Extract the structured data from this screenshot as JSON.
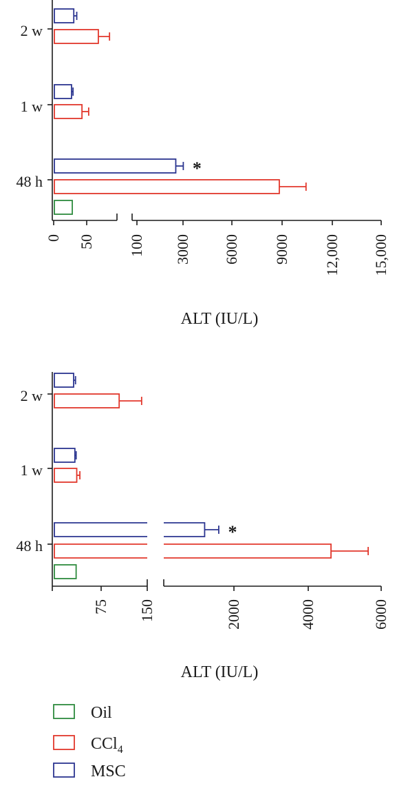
{
  "chart_data": [
    {
      "type": "bar",
      "orientation": "horizontal",
      "categories": [
        "2 w",
        "1 w",
        "48 h"
      ],
      "xlabel": "ALT (IU/L)",
      "axis_break": {
        "segments": [
          [
            0,
            85
          ],
          [
            85,
            15000
          ]
        ]
      },
      "ticks_segment1": [
        "0",
        "50"
      ],
      "ticks_segment2": [
        "100",
        "3000",
        "6000",
        "9000",
        "12,000",
        "15,000"
      ],
      "tick_values_segment2": [
        100,
        3000,
        6000,
        9000,
        12000,
        15000
      ],
      "series": [
        {
          "name": "Oil",
          "values": [
            null,
            null,
            25
          ],
          "errors": [
            null,
            null,
            0
          ]
        },
        {
          "name": "CCl4",
          "values": [
            60,
            38,
            8900
          ],
          "errors": [
            15,
            9,
            1600
          ]
        },
        {
          "name": "MSC",
          "values": [
            27,
            24,
            2700
          ],
          "errors": [
            4,
            2,
            450
          ]
        }
      ],
      "annotations": [
        {
          "category": "48 h",
          "series": "MSC",
          "text": "*"
        }
      ]
    },
    {
      "type": "bar",
      "orientation": "horizontal",
      "categories": [
        "2 w",
        "1 w",
        "48 h"
      ],
      "xlabel": "ALT (IU/L)",
      "axis_break": {
        "segments": [
          [
            0,
            150
          ],
          [
            150,
            6000
          ]
        ]
      },
      "ticks_segment1": [
        "75",
        "150"
      ],
      "tick_values_segment1": [
        75,
        150
      ],
      "ticks_segment2": [
        "2000",
        "4000",
        "6000"
      ],
      "tick_values_segment2": [
        2000,
        4000,
        6000
      ],
      "series": [
        {
          "name": "Oil",
          "values": [
            null,
            null,
            36
          ],
          "errors": [
            null,
            null,
            0
          ]
        },
        {
          "name": "CCl4",
          "values": [
            105,
            37,
            4650
          ],
          "errors": [
            36,
            5,
            1000
          ]
        },
        {
          "name": "MSC",
          "values": [
            32,
            34,
            1250
          ],
          "errors": [
            3,
            2,
            380
          ]
        }
      ],
      "annotations": [
        {
          "category": "48 h",
          "series": "MSC",
          "text": "*"
        }
      ]
    }
  ],
  "legend": {
    "items": [
      {
        "label": "Oil",
        "color": "#2e8b3e"
      },
      {
        "label": "CCl4",
        "color": "#e2372b"
      },
      {
        "label": "MSC",
        "color": "#2b3590"
      }
    ]
  },
  "colors": {
    "Oil": "#2e8b3e",
    "CCl4": "#e2372b",
    "MSC": "#2b3590",
    "axis": "#1a1a1a"
  }
}
